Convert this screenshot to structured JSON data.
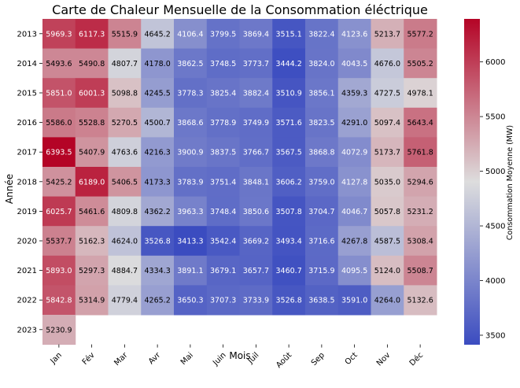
{
  "chart_data": {
    "type": "heatmap",
    "title": "Carte de Chaleur Mensuelle de la Consommation éléctrique",
    "xlabel": "Mois",
    "ylabel": "Année",
    "colorbar_label": "Consommation Moyenne (MW)",
    "colormap": "coolwarm",
    "color_low": "#3b4cc0",
    "color_mid": "#dddddd",
    "color_high": "#b40426",
    "vmin": 3413.3,
    "vmax": 6393.5,
    "colorbar_ticks": [
      "3500",
      "4000",
      "4500",
      "5000",
      "5500",
      "6000"
    ],
    "x_categories": [
      "Jan",
      "Fév",
      "Mar",
      "Avr",
      "Mai",
      "Juin",
      "Juil",
      "Août",
      "Sep",
      "Oct",
      "Nov",
      "Déc"
    ],
    "y_categories": [
      "2013",
      "2014",
      "2015",
      "2016",
      "2017",
      "2018",
      "2019",
      "2020",
      "2021",
      "2022",
      "2023"
    ],
    "values": [
      [
        "5969.3",
        "6117.3",
        "5515.9",
        "4645.2",
        "4106.4",
        "3799.5",
        "3869.4",
        "3515.1",
        "3822.4",
        "4123.6",
        "5213.7",
        "5577.2"
      ],
      [
        "5493.6",
        "5490.8",
        "4807.7",
        "4178.0",
        "3862.5",
        "3748.5",
        "3773.7",
        "3444.2",
        "3824.0",
        "4043.5",
        "4676.0",
        "5505.2"
      ],
      [
        "5851.0",
        "6001.3",
        "5098.8",
        "4245.5",
        "3778.3",
        "3825.4",
        "3882.4",
        "3510.9",
        "3856.1",
        "4359.3",
        "4727.5",
        "4978.1"
      ],
      [
        "5586.0",
        "5528.8",
        "5270.5",
        "4500.7",
        "3868.6",
        "3778.9",
        "3749.9",
        "3571.6",
        "3823.5",
        "4291.0",
        "5097.4",
        "5643.4"
      ],
      [
        "6393.5",
        "5407.9",
        "4763.6",
        "4216.3",
        "3900.9",
        "3837.5",
        "3766.7",
        "3567.5",
        "3868.8",
        "4072.9",
        "5173.7",
        "5761.8"
      ],
      [
        "5425.2",
        "6189.0",
        "5406.5",
        "4173.3",
        "3783.9",
        "3751.4",
        "3848.1",
        "3606.2",
        "3759.0",
        "4127.8",
        "5035.0",
        "5294.6"
      ],
      [
        "6025.7",
        "5461.6",
        "4809.8",
        "4362.2",
        "3963.3",
        "3748.4",
        "3850.6",
        "3507.8",
        "3704.7",
        "4046.7",
        "5057.8",
        "5231.2"
      ],
      [
        "5537.7",
        "5162.3",
        "4624.0",
        "3526.8",
        "3413.3",
        "3542.4",
        "3669.2",
        "3493.4",
        "3716.6",
        "4267.8",
        "4587.5",
        "5308.4"
      ],
      [
        "5893.0",
        "5297.3",
        "4884.7",
        "4334.3",
        "3891.1",
        "3679.1",
        "3657.7",
        "3460.7",
        "3715.9",
        "4095.5",
        "5124.0",
        "5508.7"
      ],
      [
        "5842.8",
        "5314.9",
        "4779.4",
        "4265.2",
        "3650.3",
        "3707.3",
        "3733.9",
        "3526.8",
        "3638.5",
        "3591.0",
        "4264.0",
        "5132.6"
      ],
      [
        "5230.9",
        null,
        null,
        null,
        null,
        null,
        null,
        null,
        null,
        null,
        null,
        null
      ]
    ],
    "grid": false,
    "legend": "colorbar-right"
  }
}
